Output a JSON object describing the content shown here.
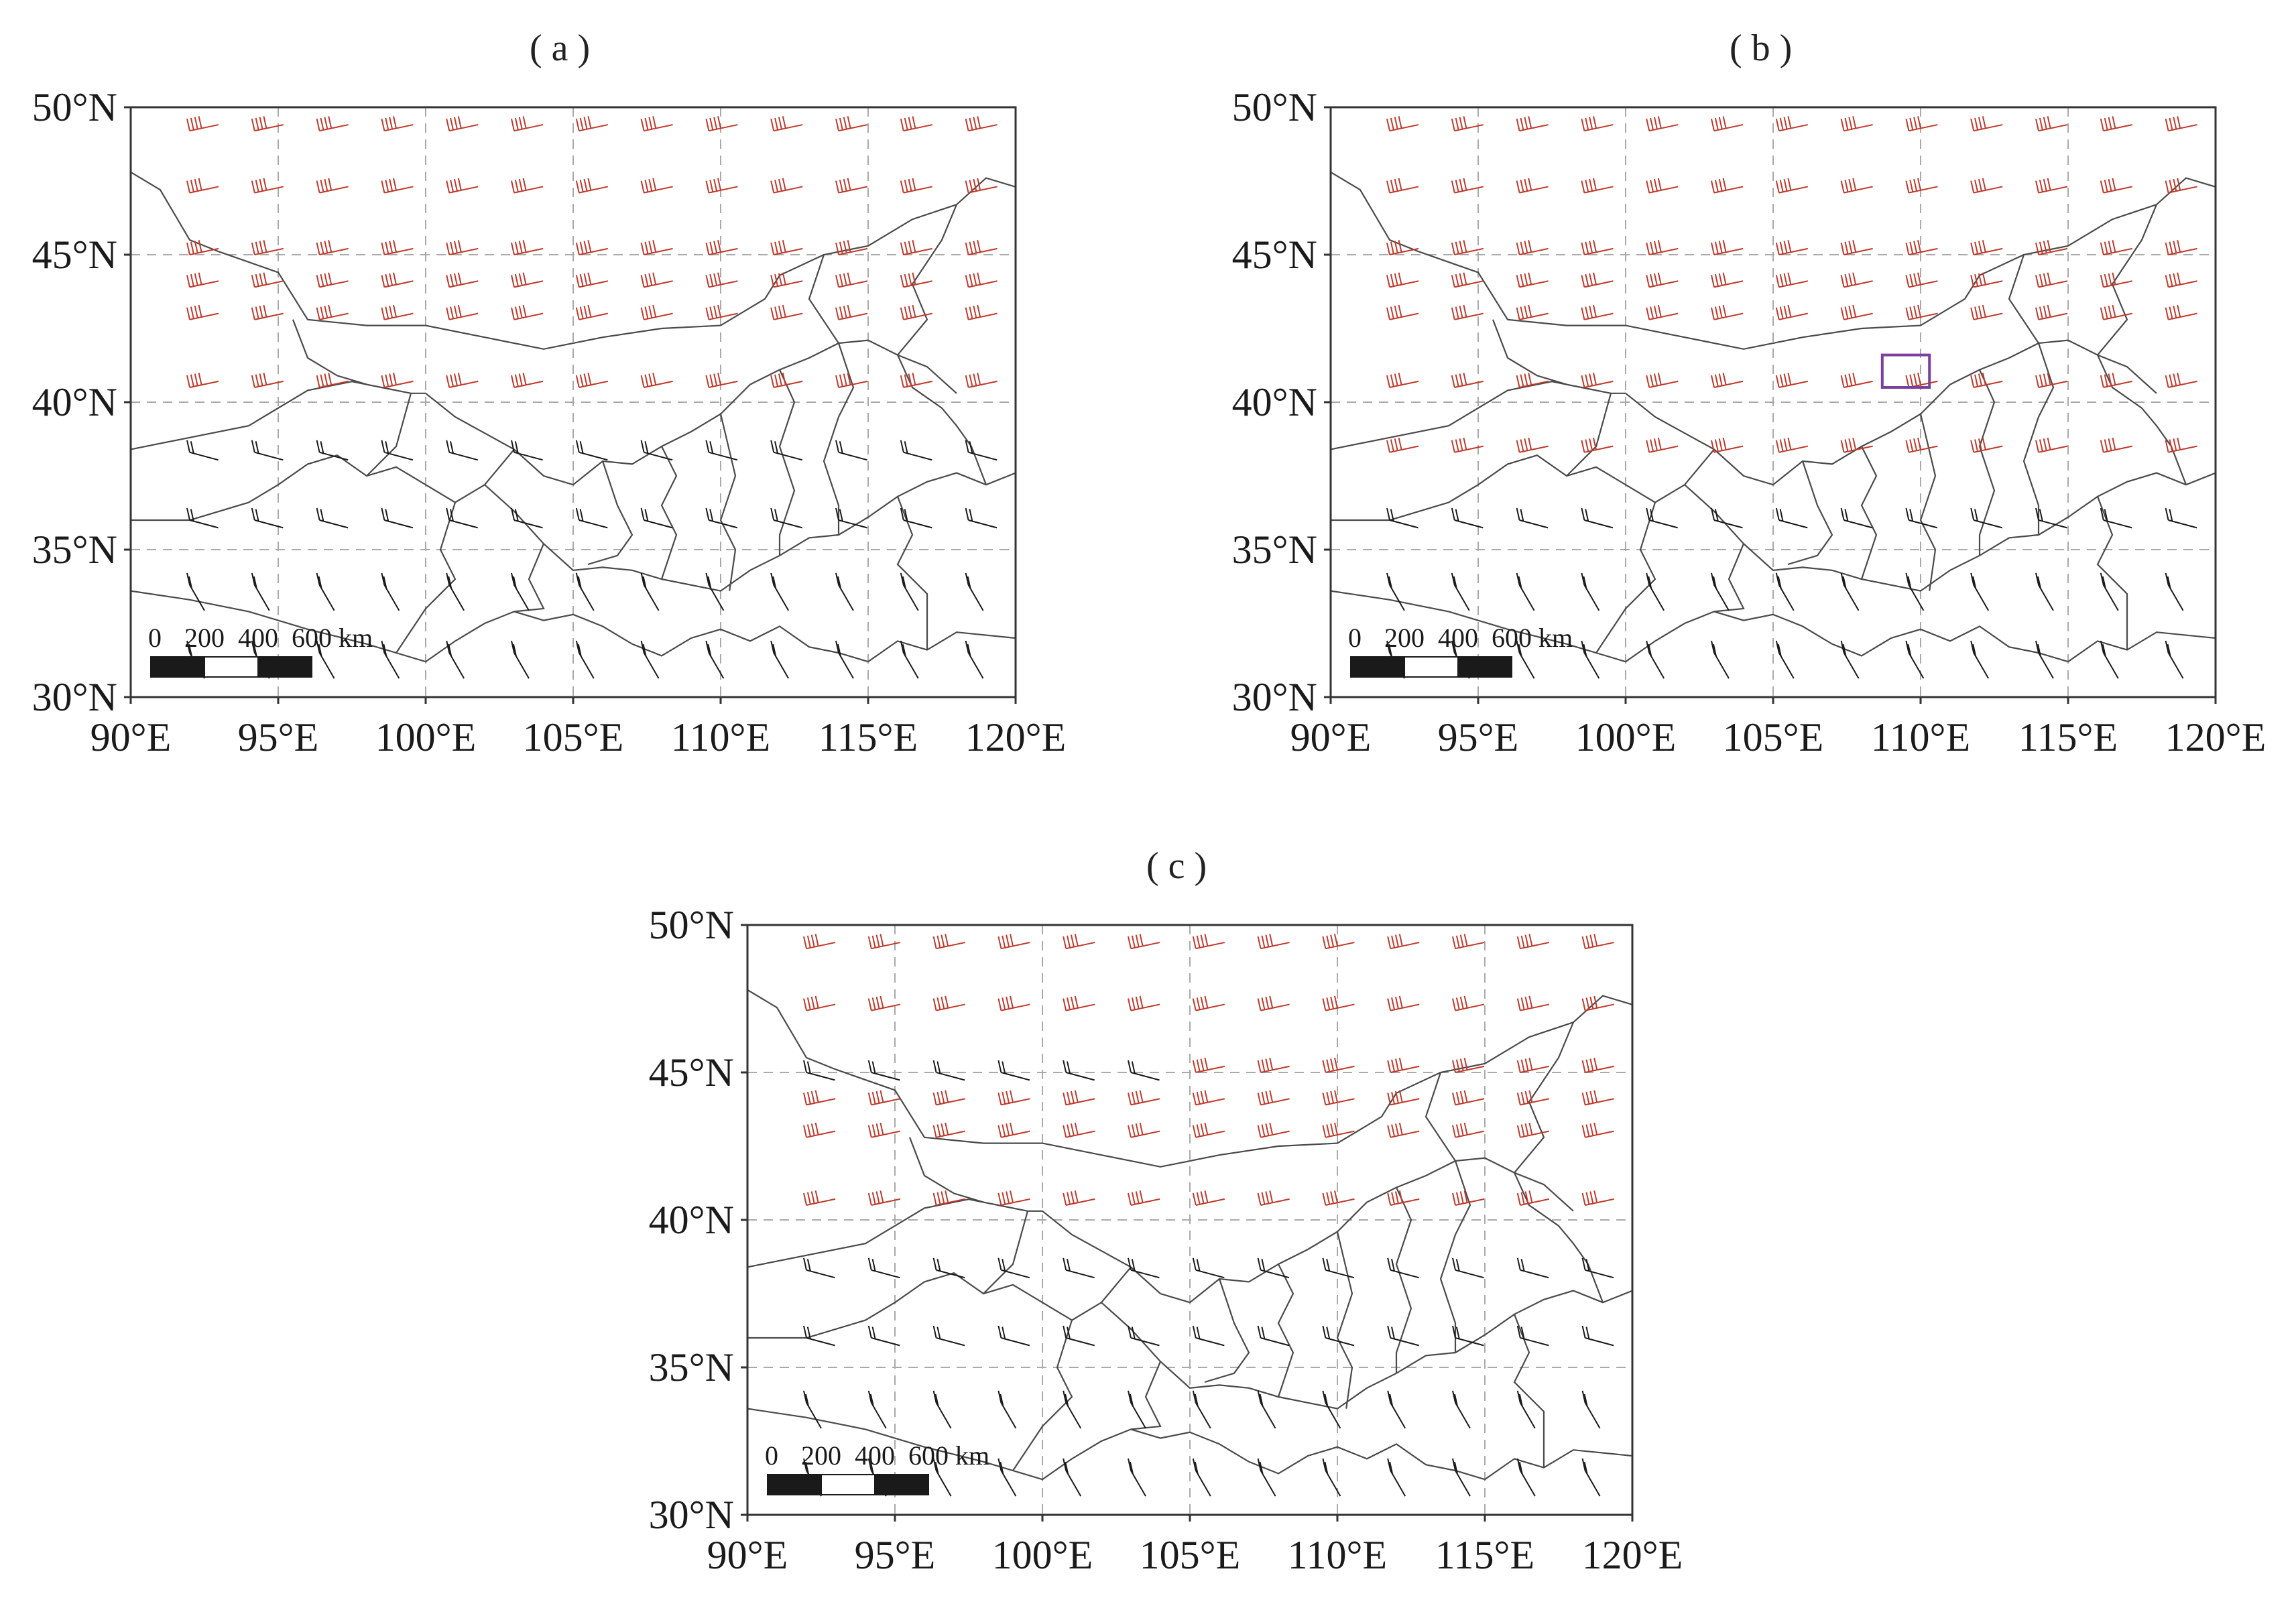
{
  "colors": {
    "strong_wind": "#c0392b",
    "weak_wind": "#1a1a1a",
    "highlight_box": "#7b3f9e",
    "grid": "#aaaaaa",
    "border": "#333333"
  },
  "axes": {
    "lat_ticks": [
      "50°N",
      "45°N",
      "40°N",
      "35°N",
      "30°N"
    ],
    "lon_ticks": [
      "90°E",
      "95°E",
      "100°E",
      "105°E",
      "110°E",
      "115°E",
      "120°E"
    ],
    "lat_range": [
      30,
      50
    ],
    "lon_range": [
      90,
      120
    ]
  },
  "scale_bar": {
    "labels": [
      "0",
      "200",
      "400",
      "600 km"
    ]
  },
  "panels": [
    {
      "id": "a",
      "label": "( a )",
      "highlight_box": null
    },
    {
      "id": "b",
      "label": "( b )",
      "highlight_box": {
        "lon": [
          108.7,
          110.3
        ],
        "lat": [
          40.5,
          41.6
        ]
      }
    },
    {
      "id": "c",
      "label": "( c )",
      "highlight_box": null
    }
  ]
}
